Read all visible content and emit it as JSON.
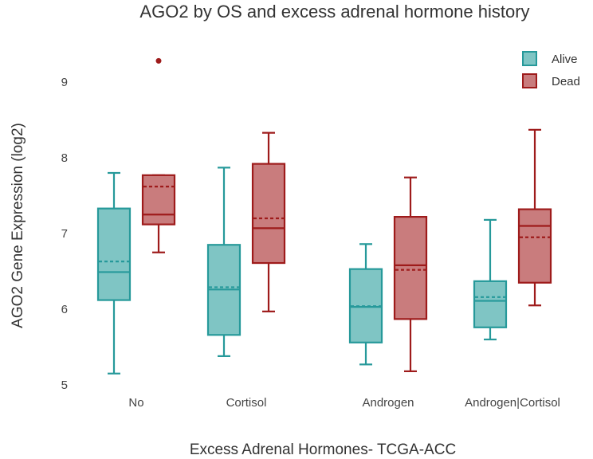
{
  "chart_data": {
    "type": "box",
    "title": "AGO2 by OS and excess adrenal hormone history",
    "xlabel": "Excess Adrenal Hormones- TCGA-ACC",
    "ylabel": "AGO2 Gene Expression (log2)",
    "ylim": [
      4.9,
      9.65
    ],
    "yticks": [
      "5",
      "6",
      "7",
      "8",
      "9"
    ],
    "categories": [
      "No",
      "Cortisol",
      "Androgen",
      "Androgen|Cortisol"
    ],
    "legend_position": "top-right",
    "series": [
      {
        "name": "Alive",
        "color": "#26999a",
        "fill": "#7fc5c4",
        "boxes": [
          {
            "min": 5.15,
            "q1": 6.12,
            "median": 6.49,
            "mean": 6.63,
            "q3": 7.33,
            "max": 7.8,
            "outliers": []
          },
          {
            "min": 5.38,
            "q1": 5.66,
            "median": 6.26,
            "mean": 6.29,
            "q3": 6.85,
            "max": 7.87,
            "outliers": []
          },
          {
            "min": 5.27,
            "q1": 5.56,
            "median": 6.03,
            "mean": 6.04,
            "q3": 6.53,
            "max": 6.86,
            "outliers": []
          },
          {
            "min": 5.6,
            "q1": 5.76,
            "median": 6.11,
            "mean": 6.16,
            "q3": 6.37,
            "max": 7.18,
            "outliers": []
          }
        ]
      },
      {
        "name": "Dead",
        "color": "#9e1b1b",
        "fill": "#c97c7d",
        "boxes": [
          {
            "min": 6.75,
            "q1": 7.12,
            "median": 7.25,
            "mean": 7.62,
            "q3": 7.77,
            "max": 7.77,
            "outliers": [
              9.28
            ]
          },
          {
            "min": 5.97,
            "q1": 6.61,
            "median": 7.07,
            "mean": 7.2,
            "q3": 7.92,
            "max": 8.33,
            "outliers": []
          },
          {
            "min": 5.18,
            "q1": 5.87,
            "median": 6.58,
            "mean": 6.52,
            "q3": 7.22,
            "max": 7.74,
            "outliers": []
          },
          {
            "min": 6.05,
            "q1": 6.35,
            "median": 7.1,
            "mean": 6.95,
            "q3": 7.32,
            "max": 8.37,
            "outliers": []
          }
        ]
      }
    ]
  }
}
